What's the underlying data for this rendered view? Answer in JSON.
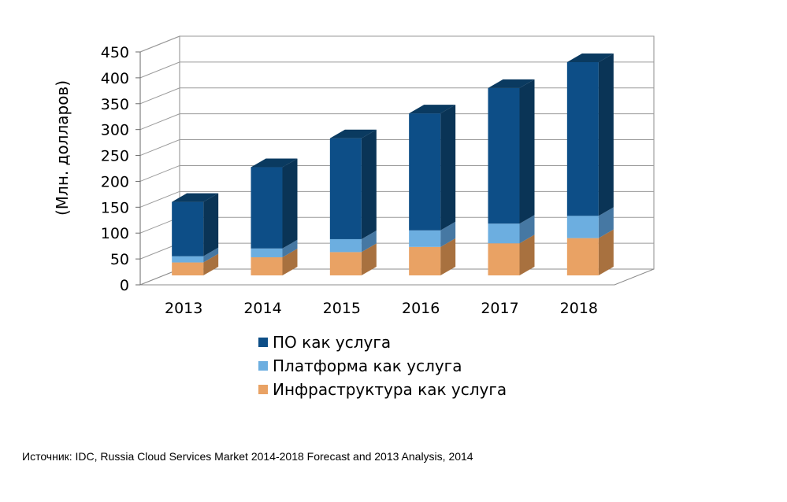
{
  "chart_data": {
    "type": "bar",
    "stacked": true,
    "three_d": true,
    "categories": [
      "2013",
      "2014",
      "2015",
      "2016",
      "2017",
      "2018"
    ],
    "series": [
      {
        "name": "Инфраструктура как услуга",
        "values": [
          25,
          35,
          45,
          55,
          62,
          72
        ],
        "color": "#E9A264",
        "side": "#A8713F",
        "top": "#F1BB88"
      },
      {
        "name": "Платформа как услуга",
        "values": [
          12,
          17,
          25,
          32,
          38,
          43
        ],
        "color": "#6CAEE0",
        "side": "#4678A3",
        "top": "#9CCBEE"
      },
      {
        "name": "ПО как услуга",
        "values": [
          105,
          157,
          195,
          226,
          262,
          297
        ],
        "color": "#0D4E87",
        "side": "#0A3456",
        "top": "#0A3A60"
      }
    ],
    "legend_order": [
      "ПО как услуга",
      "Платформа как услуга",
      "Инфраструктура как услуга"
    ],
    "ylabel": "(Млн. долларов)",
    "xlabel": "",
    "ylim": [
      0,
      450
    ],
    "yticks": [
      0,
      50,
      100,
      150,
      200,
      250,
      300,
      350,
      400,
      450
    ],
    "grid": true,
    "legend_position": "bottom"
  },
  "source_note": "Источник: IDC, Russia Cloud Services Market 2014-2018 Forecast and 2013 Analysis, 2014"
}
